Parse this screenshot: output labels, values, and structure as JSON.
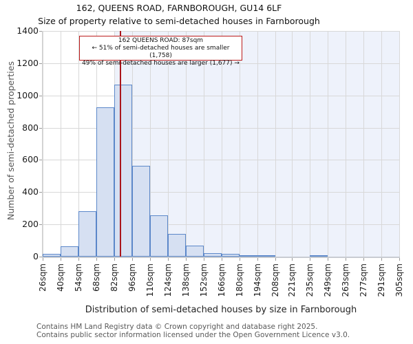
{
  "title": "162, QUEENS ROAD, FARNBOROUGH, GU14 6LF",
  "subtitle": "Size of property relative to semi-detached houses in Farnborough",
  "annotation": {
    "line1": "162 QUEENS ROAD: 87sqm",
    "line2": "← 51% of semi-detached houses are smaller (1,758)",
    "line3": "49% of semi-detached houses are larger (1,677) →"
  },
  "chart_data": {
    "type": "bar",
    "title": "162, QUEENS ROAD, FARNBOROUGH, GU14 6LF",
    "subtitle": "Size of property relative to semi-detached houses in Farnborough",
    "xlabel": "Distribution of semi-detached houses by size in Farnborough",
    "ylabel": "Number of semi-detached properties",
    "ylim": [
      0,
      1400
    ],
    "yticks": [
      0,
      200,
      400,
      600,
      800,
      1000,
      1200,
      1400
    ],
    "x_tick_values": [
      26,
      40,
      54,
      68,
      82,
      96,
      110,
      124,
      138,
      152,
      166,
      180,
      194,
      208,
      221,
      235,
      249,
      263,
      277,
      291,
      305
    ],
    "x_tick_labels": [
      "26sqm",
      "40sqm",
      "54sqm",
      "68sqm",
      "82sqm",
      "96sqm",
      "110sqm",
      "124sqm",
      "138sqm",
      "152sqm",
      "166sqm",
      "180sqm",
      "194sqm",
      "208sqm",
      "221sqm",
      "235sqm",
      "249sqm",
      "263sqm",
      "277sqm",
      "291sqm",
      "305sqm"
    ],
    "bin_edges": [
      26,
      40,
      54,
      68,
      82,
      96,
      110,
      124,
      138,
      152,
      166,
      180,
      194,
      208,
      221,
      235,
      249,
      263,
      277,
      291,
      305
    ],
    "counts": [
      15,
      65,
      280,
      925,
      1065,
      565,
      258,
      140,
      68,
      20,
      15,
      8,
      8,
      0,
      0,
      5,
      0,
      0,
      0,
      0
    ],
    "marker": {
      "value": 87,
      "label": "87sqm",
      "color": "#aa141a"
    },
    "highlight_region": {
      "from": 82,
      "to": 305,
      "color": "#eef2fb"
    },
    "grid": true,
    "bar_fill": "#d6e0f2",
    "bar_edge": "#5b87c9",
    "gridline_color": "#d8d8d8"
  },
  "footer": {
    "line1": "Contains HM Land Registry data © Crown copyright and database right 2025.",
    "line2": "Contains public sector information licensed under the Open Government Licence v3.0."
  }
}
